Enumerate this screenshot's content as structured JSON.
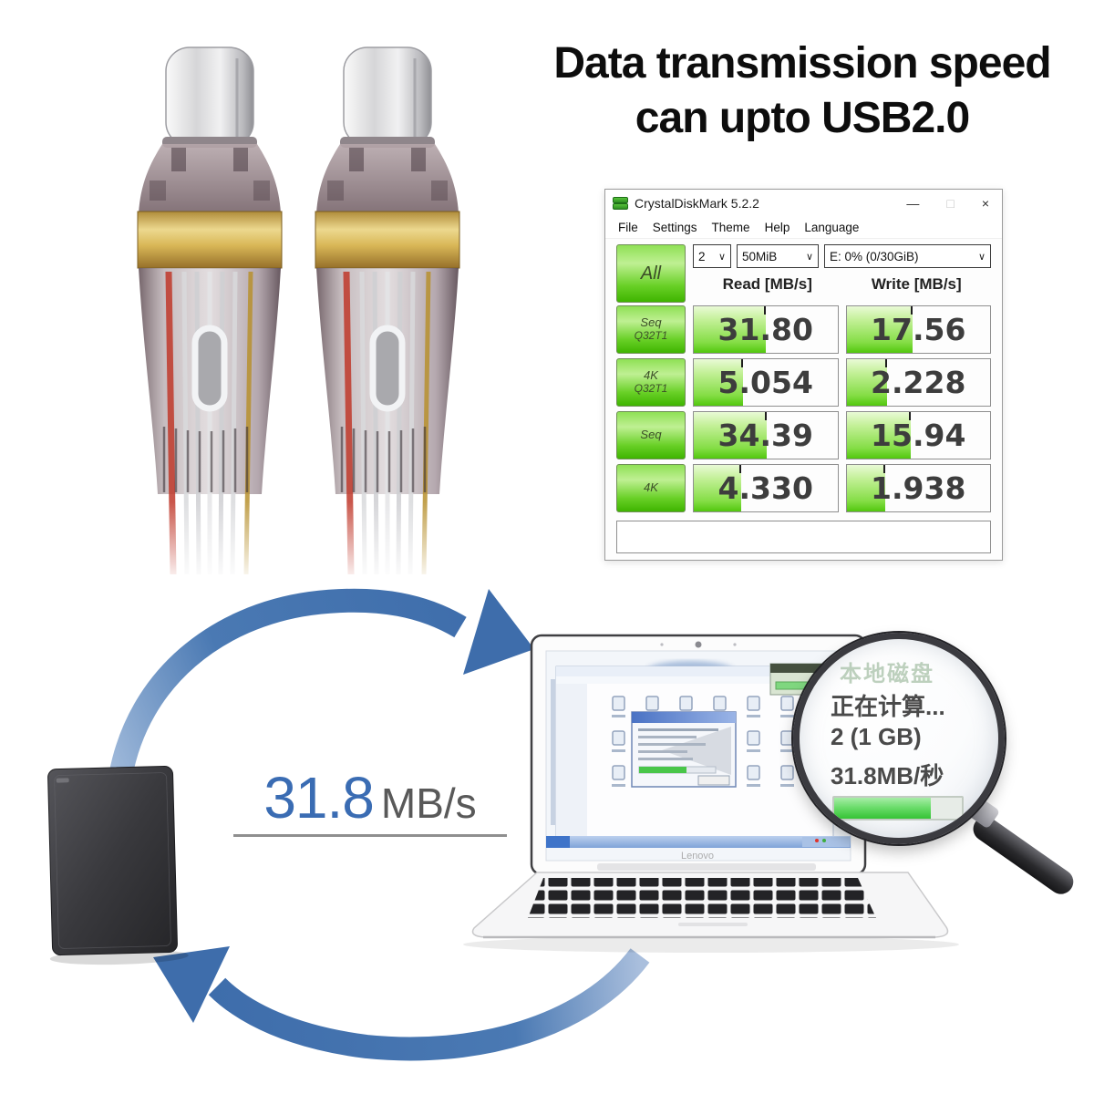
{
  "heading": {
    "line1": "Data transmission speed",
    "line2": "can upto USB2.0"
  },
  "cdm_window": {
    "title": "CrystalDiskMark 5.2.2",
    "window_controls": {
      "minimize": "—",
      "maximize": "□",
      "close": "×"
    },
    "menu": {
      "file": "File",
      "settings": "Settings",
      "theme": "Theme",
      "help": "Help",
      "language": "Language"
    },
    "toolbar": {
      "all_button": "All",
      "test_count": "2",
      "test_size": "50MiB",
      "target_drive": "E: 0% (0/30GiB)",
      "chevron": "∨"
    },
    "columns": {
      "read": "Read [MB/s]",
      "write": "Write [MB/s]"
    },
    "rows": [
      {
        "label1": "Seq",
        "label2": "Q32T1",
        "read": "31.80",
        "write": "17.56",
        "read_fill": 50,
        "write_fill": 46
      },
      {
        "label1": "4K",
        "label2": "Q32T1",
        "read": "5.054",
        "write": "2.228",
        "read_fill": 34,
        "write_fill": 28
      },
      {
        "label1": "Seq",
        "label2": "",
        "read": "34.39",
        "write": "15.94",
        "read_fill": 51,
        "write_fill": 45
      },
      {
        "label1": "4K",
        "label2": "",
        "read": "4.330",
        "write": "1.938",
        "read_fill": 33,
        "write_fill": 27
      }
    ],
    "comment": ""
  },
  "diagram": {
    "speed_value": "31.8",
    "speed_unit": "MB/s",
    "laptop_brand": "Lenovo",
    "magnifier": {
      "faint_label": "本地磁盘",
      "line1": "正在计算...",
      "line2": "2 (1 GB)",
      "line3": "31.8MB/秒",
      "progress_percent": 76
    },
    "colors": {
      "arrow_blue": "#4273ae",
      "speed_blue": "#3a6cb3",
      "progress_green": "#35c335"
    }
  }
}
